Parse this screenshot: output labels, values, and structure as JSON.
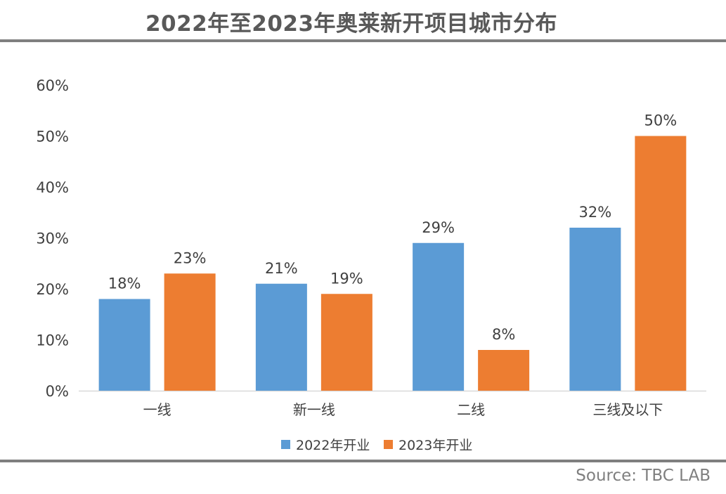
{
  "title": "2022年至2023年奥莱新开项目城市分布",
  "source": "Source: TBC LAB",
  "colors": {
    "series1": "#5b9bd5",
    "series2": "#ed7d31",
    "axis": "#d9d9d9",
    "text": "#404040"
  },
  "chart_data": {
    "type": "bar",
    "categories": [
      "一线",
      "新一线",
      "二线",
      "三线及以下"
    ],
    "series": [
      {
        "name": "2022年开业",
        "values": [
          18,
          21,
          29,
          32
        ]
      },
      {
        "name": "2023年开业",
        "values": [
          23,
          19,
          8,
          50
        ]
      }
    ],
    "data_labels": [
      [
        "18%",
        "21%",
        "29%",
        "32%"
      ],
      [
        "23%",
        "19%",
        "8%",
        "50%"
      ]
    ],
    "y_ticks": [
      "0%",
      "10%",
      "20%",
      "30%",
      "40%",
      "50%",
      "60%"
    ],
    "ylim": [
      0,
      60
    ],
    "grid": false,
    "legend": "bottom"
  }
}
